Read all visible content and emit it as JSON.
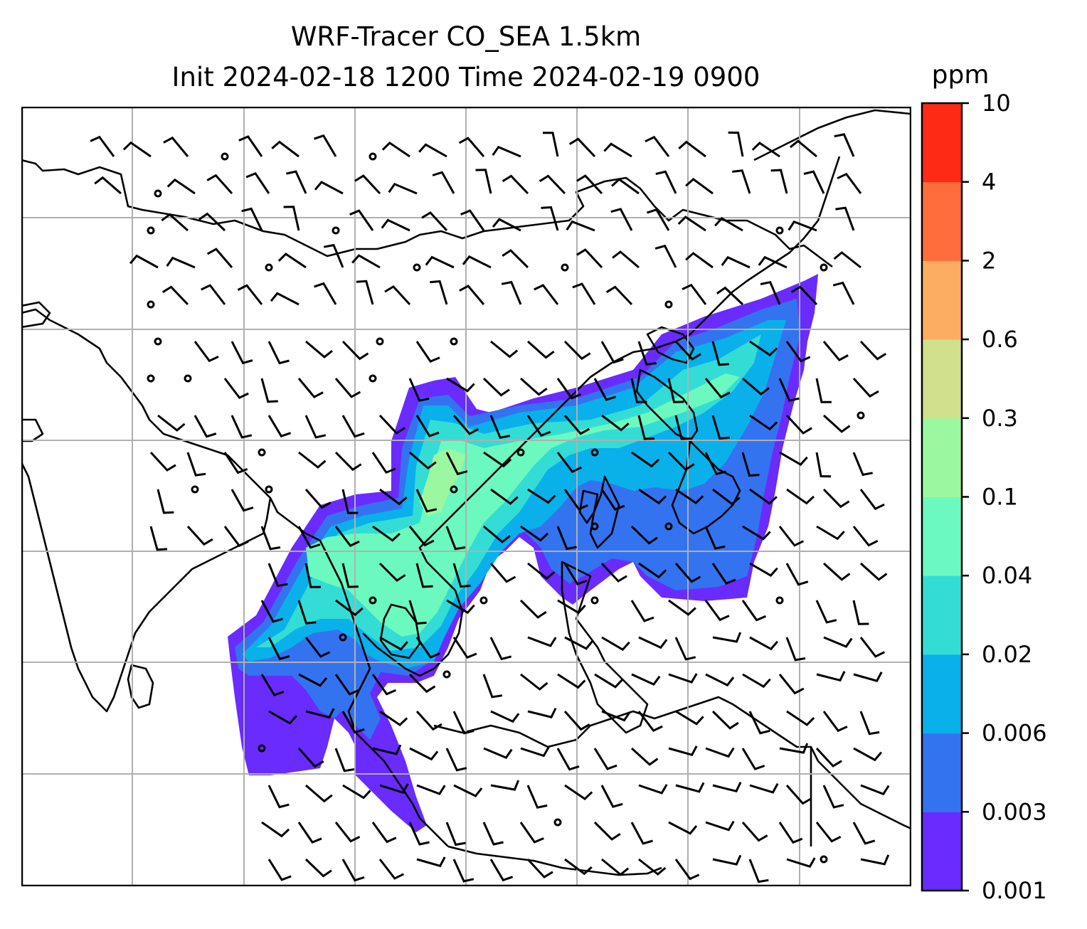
{
  "title": {
    "line1": "WRF-Tracer CO_SEA 1.5km",
    "line2": "Init 2024-02-18 1200 Time 2024-02-19 0900"
  },
  "colorbar": {
    "unit": "ppm",
    "levels": [
      "0.001",
      "0.003",
      "0.006",
      "0.02",
      "0.04",
      "0.1",
      "0.3",
      "0.6",
      "2",
      "4",
      "10"
    ],
    "colors": [
      "#6a2bff",
      "#3473f0",
      "#0ab0ea",
      "#33ddd5",
      "#6cf9bf",
      "#9bf8a0",
      "#d1e08b",
      "#fdad62",
      "#ff6d3c",
      "#ff2a16"
    ]
  },
  "map": {
    "gridlines": true,
    "background": "#ffffff",
    "coastline_color": "#000000",
    "gridline_color": "#b0b0b0"
  }
}
